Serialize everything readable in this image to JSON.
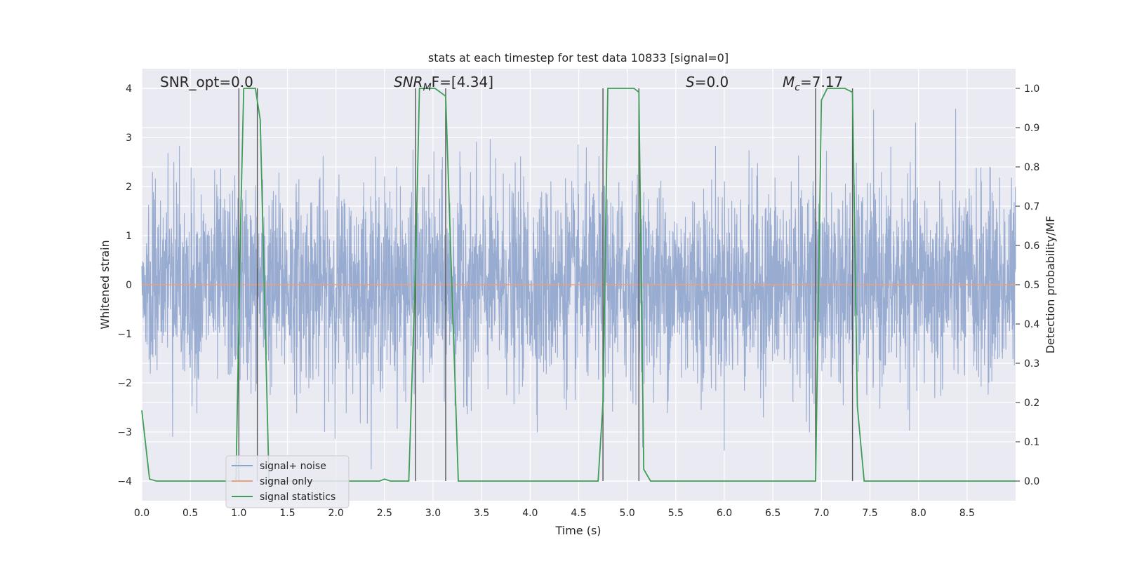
{
  "chart_data": {
    "type": "line",
    "title": "stats at each timestep for test data 10833 [signal=0]",
    "xlabel": "Time (s)",
    "ylabel": "Whitened strain",
    "ylabel_right": "Detection probability/MF",
    "xlim": [
      0.0,
      9.0
    ],
    "ylim": [
      -4.4,
      4.4
    ],
    "ylim_right": [
      -0.05,
      1.05
    ],
    "x_ticks": [
      "0.0",
      "0.5",
      "1.0",
      "1.5",
      "2.0",
      "2.5",
      "3.0",
      "3.5",
      "4.0",
      "4.5",
      "5.0",
      "5.5",
      "6.0",
      "6.5",
      "7.0",
      "7.5",
      "8.0",
      "8.5"
    ],
    "x_tick_values": [
      0.0,
      0.5,
      1.0,
      1.5,
      2.0,
      2.5,
      3.0,
      3.5,
      4.0,
      4.5,
      5.0,
      5.5,
      6.0,
      6.5,
      7.0,
      7.5,
      8.0,
      8.5
    ],
    "y_ticks": [
      "−4",
      "−3",
      "−2",
      "−1",
      "0",
      "1",
      "2",
      "3",
      "4"
    ],
    "y_tick_values": [
      -4,
      -3,
      -2,
      -1,
      0,
      1,
      2,
      3,
      4
    ],
    "y_ticks_right": [
      "0.0",
      "0.1",
      "0.2",
      "0.3",
      "0.4",
      "0.5",
      "0.6",
      "0.7",
      "0.8",
      "0.9",
      "1.0"
    ],
    "y_tick_values_right": [
      0.0,
      0.1,
      0.2,
      0.3,
      0.4,
      0.5,
      0.6,
      0.7,
      0.8,
      0.9,
      1.0
    ],
    "grid": true,
    "legend_position": "lower-left",
    "annotations": [
      {
        "text": "SNR_opt=0.0"
      },
      {
        "text": "SNR_MF=[4.34]",
        "base": "SNR",
        "sub": "M",
        "tail": "F=[4.34]"
      },
      {
        "text": "S=0.0",
        "base": "S",
        "tail": "=0.0"
      },
      {
        "text": "M_c=7.17",
        "base": "M",
        "sub": "c",
        "tail": "=7.17"
      }
    ],
    "vertical_lines_x": [
      1.0,
      1.19,
      2.82,
      3.13,
      4.75,
      5.12,
      6.94,
      7.32
    ],
    "series": [
      {
        "name": "signal+ noise",
        "color": "#8fa4cc",
        "axis": "left",
        "description_values": "white noise, std approx 1.0, sampled densely over 0.0–9.0 s",
        "std": 1.0
      },
      {
        "name": "signal only",
        "color": "#e9a07f",
        "axis": "left",
        "values_constant": 0.0
      },
      {
        "name": "signal statistics",
        "color": "#3f9e55",
        "axis": "right",
        "points": [
          [
            0.0,
            0.18
          ],
          [
            0.08,
            0.005
          ],
          [
            0.15,
            0.0
          ],
          [
            0.97,
            0.0
          ],
          [
            1.02,
            0.68
          ],
          [
            1.05,
            1.0
          ],
          [
            1.17,
            1.0
          ],
          [
            1.22,
            0.92
          ],
          [
            1.31,
            0.0
          ],
          [
            2.45,
            0.0
          ],
          [
            2.5,
            0.005
          ],
          [
            2.56,
            0.0
          ],
          [
            2.75,
            0.0
          ],
          [
            2.82,
            0.55
          ],
          [
            2.86,
            1.0
          ],
          [
            3.02,
            1.0
          ],
          [
            3.13,
            0.98
          ],
          [
            3.2,
            0.45
          ],
          [
            3.26,
            0.0
          ],
          [
            4.4,
            0.0
          ],
          [
            4.7,
            0.0
          ],
          [
            4.75,
            0.2
          ],
          [
            4.8,
            1.0
          ],
          [
            5.07,
            1.0
          ],
          [
            5.12,
            0.99
          ],
          [
            5.17,
            0.03
          ],
          [
            5.24,
            0.0
          ],
          [
            6.94,
            0.0
          ],
          [
            7.0,
            0.97
          ],
          [
            7.06,
            1.0
          ],
          [
            7.24,
            1.0
          ],
          [
            7.32,
            0.99
          ],
          [
            7.37,
            0.19
          ],
          [
            7.44,
            0.0
          ],
          [
            9.0,
            0.0
          ]
        ]
      }
    ]
  }
}
